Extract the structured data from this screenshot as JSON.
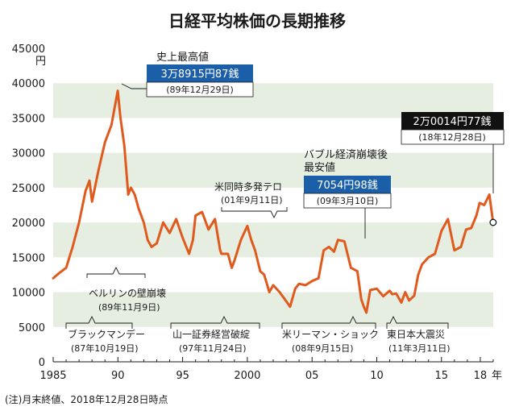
{
  "chart_data": {
    "type": "line",
    "title": "日経平均株価の長期推移",
    "y_unit": "円",
    "x_unit": "年",
    "ylim": [
      0,
      45000
    ],
    "yticks": [
      0,
      5000,
      10000,
      15000,
      20000,
      25000,
      30000,
      35000,
      40000,
      45000
    ],
    "ytick_labels": [
      "0",
      "5000",
      "10000",
      "15000",
      "20000",
      "25000",
      "30000",
      "35000",
      "40000",
      "45000"
    ],
    "xlim": [
      1985,
      2019
    ],
    "xticks": [
      1985,
      1990,
      1995,
      2000,
      2005,
      2010,
      2015,
      2018
    ],
    "xtick_labels": [
      "1985",
      "90",
      "95",
      "2000",
      "05",
      "10",
      "15",
      "18"
    ],
    "bands": [
      [
        5000,
        10000
      ],
      [
        15000,
        20000
      ],
      [
        25000,
        30000
      ],
      [
        35000,
        40000
      ]
    ],
    "series": [
      {
        "color": "#e05a1e",
        "x": [
          1985.0,
          1985.5,
          1986.0,
          1986.5,
          1987.0,
          1987.5,
          1987.8,
          1988.0,
          1988.5,
          1989.0,
          1989.5,
          1989.99,
          1990.2,
          1990.5,
          1990.8,
          1991.0,
          1991.3,
          1991.6,
          1992.0,
          1992.3,
          1992.6,
          1993.0,
          1993.5,
          1994.0,
          1994.5,
          1995.0,
          1995.5,
          1995.8,
          1996.0,
          1996.5,
          1997.0,
          1997.5,
          1997.9,
          1998.0,
          1998.5,
          1998.8,
          1999.0,
          1999.5,
          2000.0,
          2000.3,
          2000.6,
          2001.0,
          2001.3,
          2001.7,
          2002.0,
          2002.5,
          2003.0,
          2003.3,
          2003.7,
          2004.0,
          2004.5,
          2005.0,
          2005.5,
          2005.9,
          2006.3,
          2006.7,
          2007.0,
          2007.5,
          2008.0,
          2008.5,
          2008.8,
          2009.0,
          2009.2,
          2009.5,
          2010.0,
          2010.5,
          2011.0,
          2011.2,
          2011.5,
          2011.9,
          2012.2,
          2012.5,
          2012.9,
          2013.2,
          2013.5,
          2014.0,
          2014.5,
          2015.0,
          2015.5,
          2016.0,
          2016.5,
          2016.9,
          2017.3,
          2017.7,
          2017.95,
          2018.3,
          2018.7,
          2018.99
        ],
        "y": [
          12000,
          12800,
          13500,
          16500,
          20000,
          24500,
          26000,
          23000,
          27500,
          31500,
          34000,
          38915,
          35000,
          31000,
          24000,
          25000,
          24000,
          22000,
          20000,
          17500,
          16500,
          17000,
          20000,
          18500,
          20500,
          17800,
          15500,
          17500,
          21000,
          21500,
          19000,
          20500,
          16000,
          15500,
          15500,
          13500,
          14500,
          17500,
          19500,
          17500,
          16000,
          13000,
          12500,
          10000,
          11000,
          10000,
          8700,
          7900,
          10500,
          11200,
          11000,
          11600,
          12000,
          16000,
          16500,
          15800,
          17500,
          17300,
          13500,
          13000,
          9000,
          7900,
          7054,
          10300,
          10500,
          9400,
          10200,
          9700,
          9800,
          8500,
          10000,
          8800,
          9500,
          12500,
          14000,
          15000,
          15500,
          18800,
          20500,
          16000,
          16500,
          19000,
          19200,
          21000,
          22800,
          22500,
          24000,
          20014
        ],
        "end_marker": true
      }
    ],
    "annotations": [
      {
        "heading": "史上最高値",
        "value": "3万8915円87銭",
        "date": "(89年12月29日)"
      },
      {
        "heading_lines": [
          "バブル経済崩壊後",
          "最安値"
        ],
        "value": "7054円98銭",
        "date": "(09年3月10日)"
      },
      {
        "value": "2万0014円77銭",
        "date": "(18年12月28日)"
      },
      {
        "label": "米同時多発テロ",
        "date": "(01年9月11日)"
      },
      {
        "label": "ベルリンの壁崩壊",
        "date": "(89年11月9日)"
      },
      {
        "label": "ブラックマンデー",
        "date": "(87年10月19日)"
      },
      {
        "label": "山一証券経営破綻",
        "date": "(97年11月24日)"
      },
      {
        "label": "米リーマン・ショック",
        "date": "(08年9月15日)"
      },
      {
        "label": "東日本大震災",
        "date": "(11年3月11日)"
      }
    ],
    "note": "(注)月末終値、2018年12月28日時点"
  },
  "colors": {
    "line": "#e05a1e",
    "band": "#e6eee2",
    "value_box_blue": "#1b5fa8",
    "value_box_dark": "#111111"
  }
}
